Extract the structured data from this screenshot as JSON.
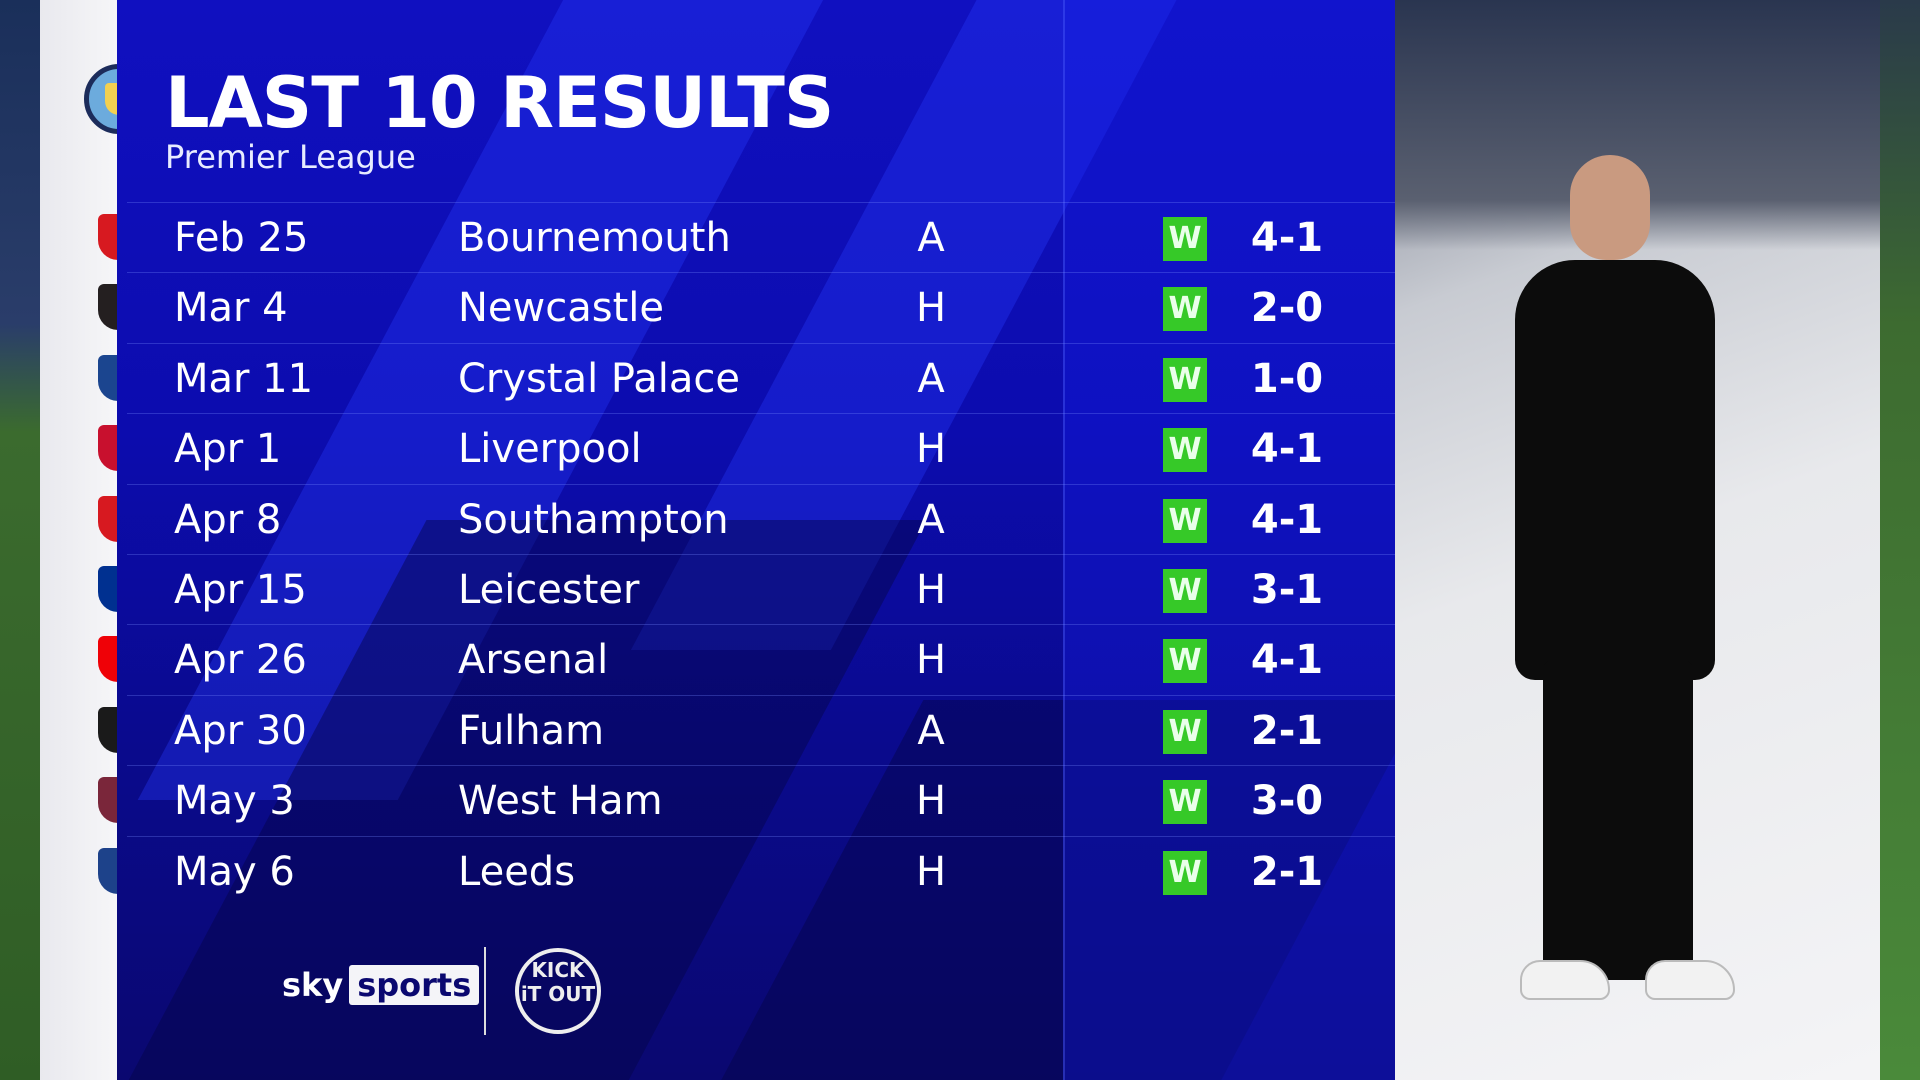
{
  "header": {
    "title": "LAST 10 RESULTS",
    "subtitle": "Premier League"
  },
  "team": {
    "crest": "manchester-city-crest"
  },
  "results": [
    {
      "date": "Feb 25",
      "opponent": "Bournemouth",
      "venue": "A",
      "result": "W",
      "score": "4-1",
      "crest_color": "#d71920"
    },
    {
      "date": "Mar 4",
      "opponent": "Newcastle",
      "venue": "H",
      "result": "W",
      "score": "2-0",
      "crest_color": "#241f20"
    },
    {
      "date": "Mar 11",
      "opponent": "Crystal Palace",
      "venue": "A",
      "result": "W",
      "score": "1-0",
      "crest_color": "#1b458f"
    },
    {
      "date": "Apr 1",
      "opponent": "Liverpool",
      "venue": "H",
      "result": "W",
      "score": "4-1",
      "crest_color": "#c8102e"
    },
    {
      "date": "Apr 8",
      "opponent": "Southampton",
      "venue": "A",
      "result": "W",
      "score": "4-1",
      "crest_color": "#d71920"
    },
    {
      "date": "Apr 15",
      "opponent": "Leicester",
      "venue": "H",
      "result": "W",
      "score": "3-1",
      "crest_color": "#003090"
    },
    {
      "date": "Apr 26",
      "opponent": "Arsenal",
      "venue": "H",
      "result": "W",
      "score": "4-1",
      "crest_color": "#ef0107"
    },
    {
      "date": "Apr 30",
      "opponent": "Fulham",
      "venue": "A",
      "result": "W",
      "score": "2-1",
      "crest_color": "#1a1a1a"
    },
    {
      "date": "May 3",
      "opponent": "West Ham",
      "venue": "H",
      "result": "W",
      "score": "3-0",
      "crest_color": "#7a263a"
    },
    {
      "date": "May 6",
      "opponent": "Leeds",
      "venue": "H",
      "result": "W",
      "score": "2-1",
      "crest_color": "#1d428a"
    }
  ],
  "colors": {
    "win": "#36c928",
    "panel": "#0c0cae"
  },
  "footer": {
    "brand_sky": "sky",
    "brand_sports": "sports",
    "partner": "KICK iT OUT"
  }
}
